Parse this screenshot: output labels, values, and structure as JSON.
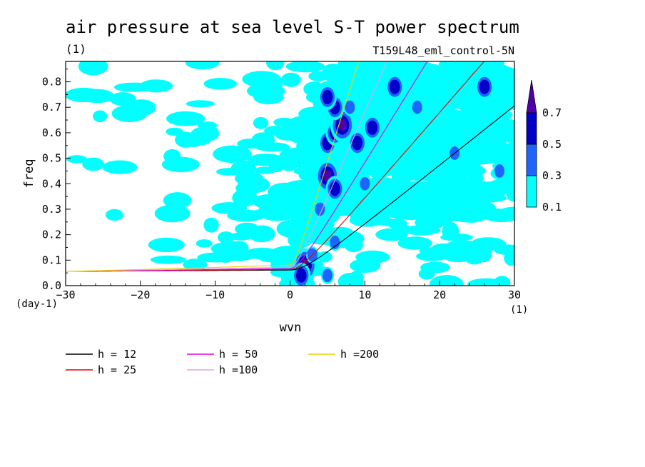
{
  "chart_data": {
    "type": "heatmap",
    "title": "air pressure at sea level S-T power spectrum",
    "units": "(1)",
    "subtitle": "T159L48_eml_control-5N",
    "xlabel": "wvn",
    "ylabel": "freq",
    "x_unit": "(1)",
    "y_unit": "(day-1)",
    "xlim": [
      -30,
      30
    ],
    "ylim": [
      0,
      0.88
    ],
    "x_ticks": [
      -30,
      -20,
      -10,
      0,
      10,
      20,
      30
    ],
    "x_tick_labels": [
      "-30",
      "-20",
      "-10",
      "0",
      "10",
      "20",
      "30"
    ],
    "y_ticks": [
      0,
      0.1,
      0.2,
      0.3,
      0.4,
      0.5,
      0.6,
      0.7,
      0.8
    ],
    "y_tick_labels": [
      "0.0",
      "0.1",
      "0.2",
      "0.3",
      "0.4",
      "0.5",
      "0.6",
      "0.7",
      "0.8"
    ],
    "colorbar": {
      "levels": [
        0.1,
        0.3,
        0.5,
        0.7
      ],
      "level_labels": [
        "0.1",
        "0.3",
        "0.5",
        "0.7"
      ],
      "colors": [
        "#00ffff",
        "#1e64ff",
        "#0000c8",
        "#5000aa"
      ]
    },
    "series": [
      {
        "name": "h = 12",
        "color": "#000000"
      },
      {
        "name": "h = 25",
        "color": "#e60000"
      },
      {
        "name": "h = 50",
        "color": "#e600e6"
      },
      {
        "name": "h =100",
        "color": "#e6a0e6"
      },
      {
        "name": "h =200",
        "color": "#e6d200"
      }
    ],
    "h_values": [
      12,
      25,
      50,
      100,
      200
    ],
    "blobs": [
      {
        "x": 2,
        "y": 0.08,
        "level": 3
      },
      {
        "x": 1.5,
        "y": 0.04,
        "level": 2
      },
      {
        "x": 3,
        "y": 0.12,
        "level": 1
      },
      {
        "x": 5,
        "y": 0.04,
        "level": 1
      },
      {
        "x": 6,
        "y": 0.17,
        "level": 1
      },
      {
        "x": 5,
        "y": 0.43,
        "level": 3
      },
      {
        "x": 6,
        "y": 0.38,
        "level": 2
      },
      {
        "x": 5,
        "y": 0.56,
        "level": 2
      },
      {
        "x": 6,
        "y": 0.6,
        "level": 2
      },
      {
        "x": 7,
        "y": 0.63,
        "level": 3
      },
      {
        "x": 6,
        "y": 0.7,
        "level": 2
      },
      {
        "x": 5,
        "y": 0.74,
        "level": 2
      },
      {
        "x": 8,
        "y": 0.7,
        "level": 1
      },
      {
        "x": 9,
        "y": 0.56,
        "level": 2
      },
      {
        "x": 11,
        "y": 0.62,
        "level": 2
      },
      {
        "x": 14,
        "y": 0.78,
        "level": 2
      },
      {
        "x": 17,
        "y": 0.7,
        "level": 1
      },
      {
        "x": 22,
        "y": 0.52,
        "level": 1
      },
      {
        "x": 26,
        "y": 0.78,
        "level": 2
      },
      {
        "x": 28,
        "y": 0.45,
        "level": 1
      },
      {
        "x": 4,
        "y": 0.3,
        "level": 1
      },
      {
        "x": 10,
        "y": 0.4,
        "level": 1
      }
    ]
  }
}
